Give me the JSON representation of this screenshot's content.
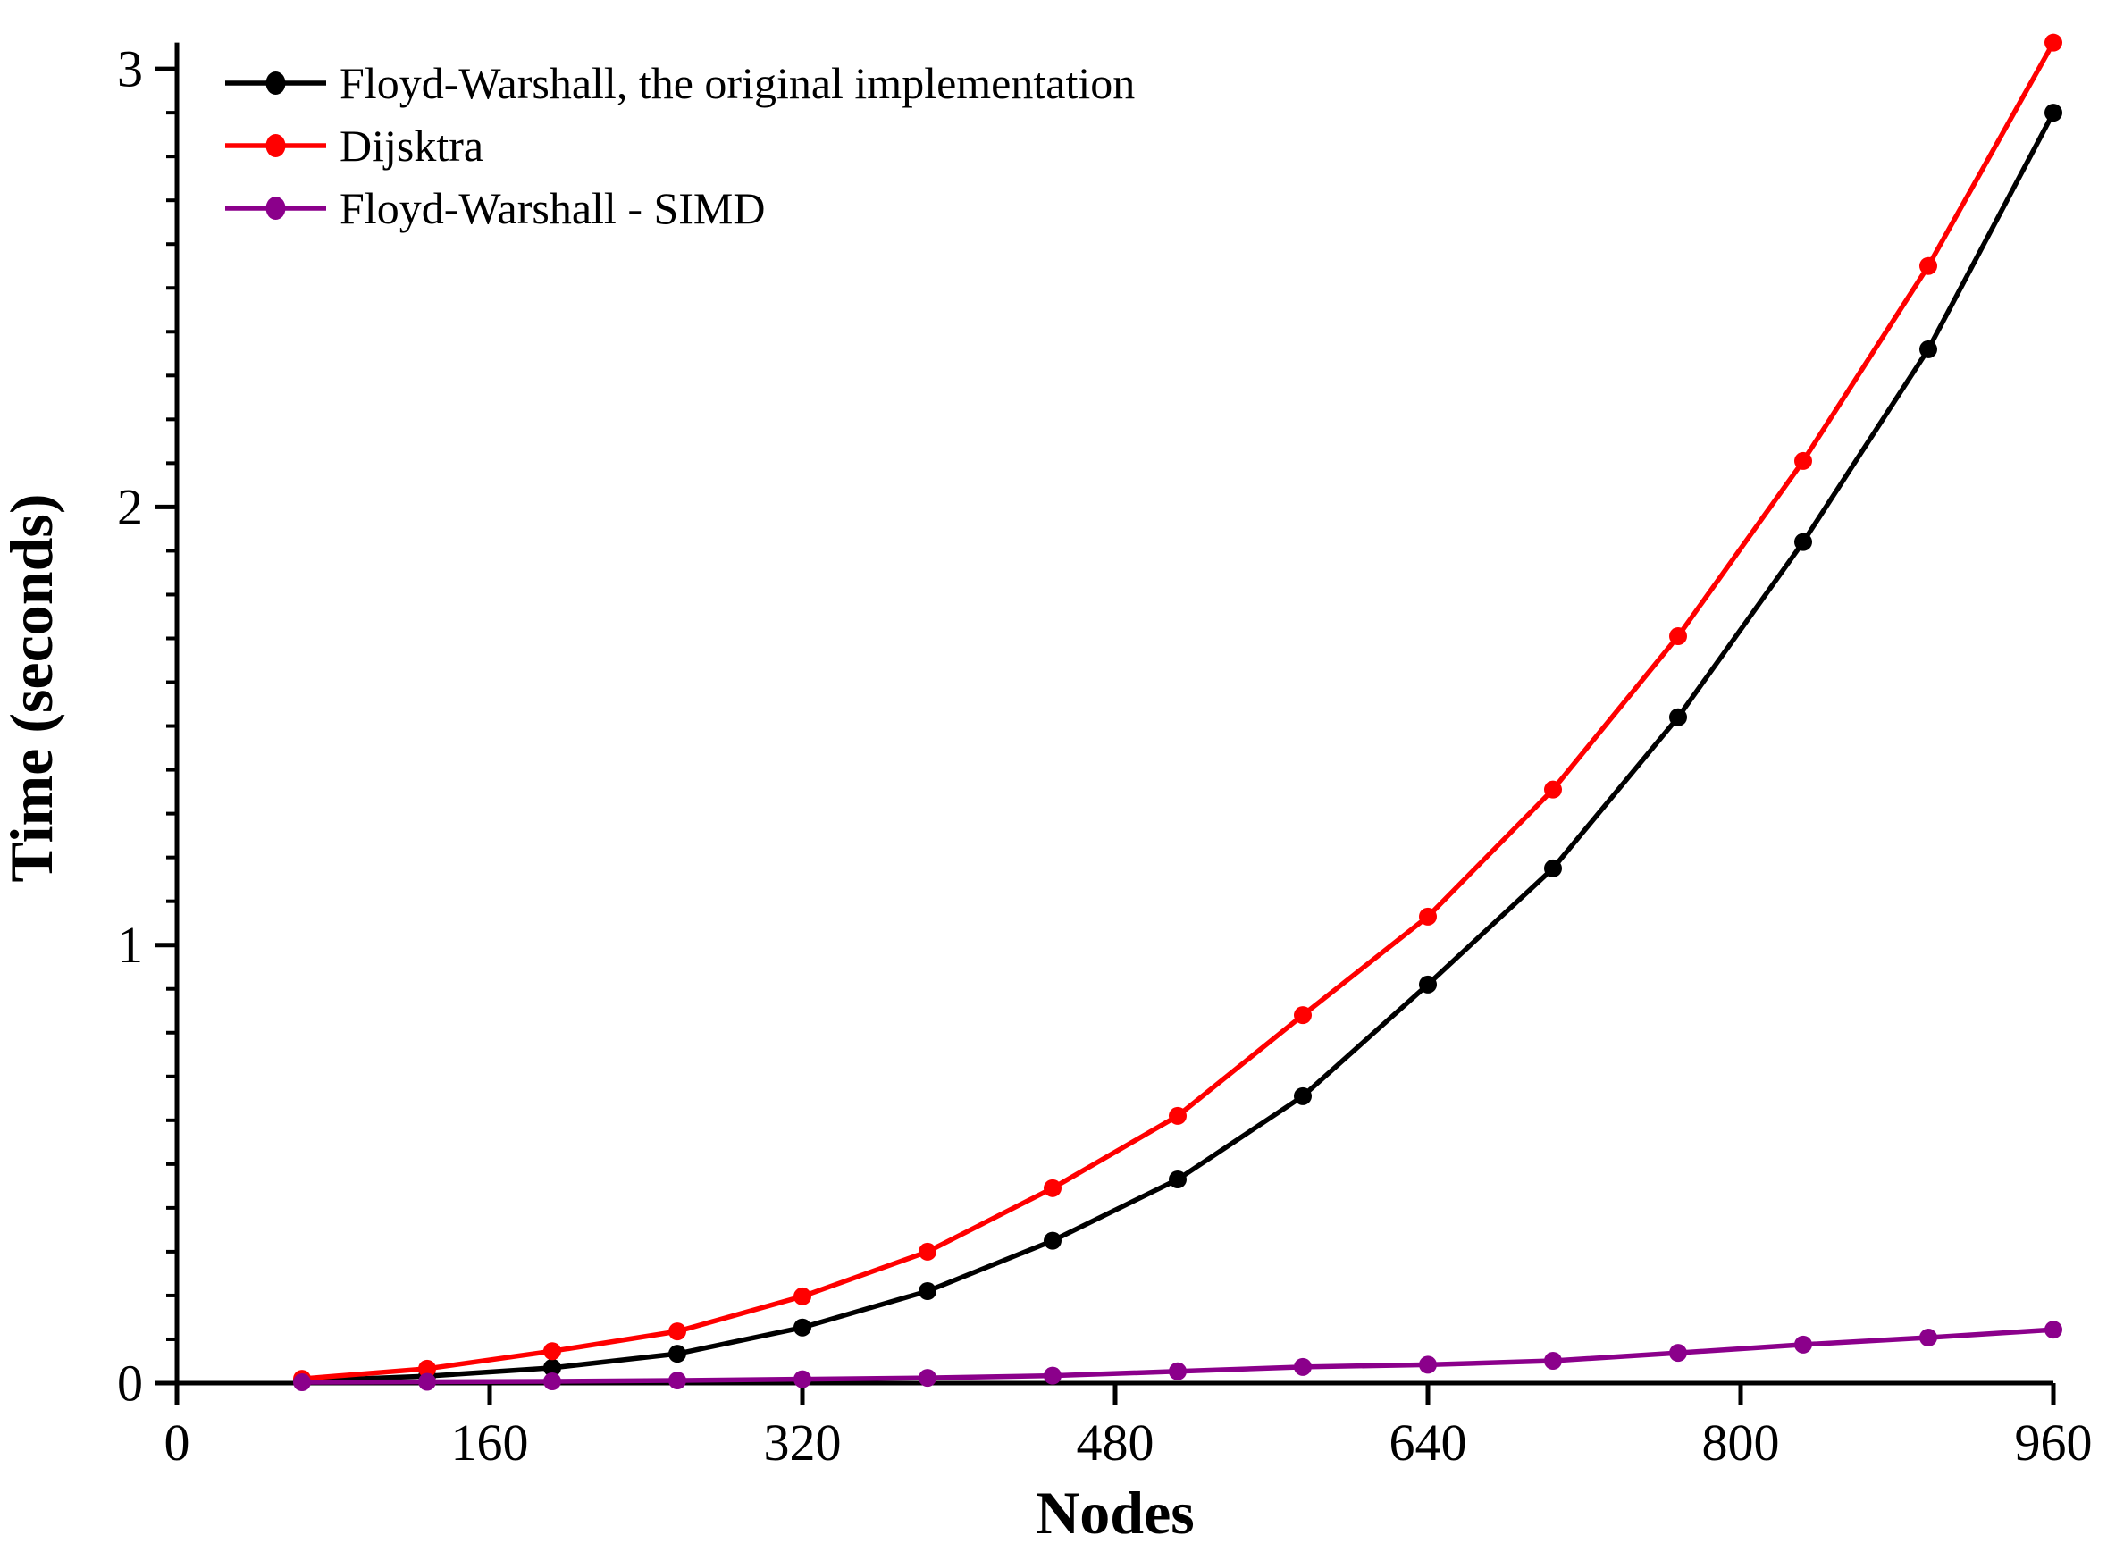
{
  "chart_data": {
    "type": "line",
    "title": "",
    "xlabel": "Nodes",
    "ylabel": "Time (seconds)",
    "xlim": [
      0,
      960
    ],
    "ylim": [
      0,
      3.06
    ],
    "x_ticks": [
      0,
      160,
      320,
      480,
      640,
      800,
      960
    ],
    "y_ticks": [
      0,
      1,
      2,
      3
    ],
    "y_minor_step": 0.1,
    "grid": false,
    "legend_position": "top-left",
    "background_color": "#ffffff",
    "axis_color": "#000000",
    "x": [
      64,
      128,
      192,
      256,
      320,
      384,
      448,
      512,
      576,
      640,
      704,
      768,
      832,
      896,
      960
    ],
    "series": [
      {
        "name": "Floyd-Warshall, the original implementation",
        "color": "#000000",
        "values": [
          0.005,
          0.016,
          0.035,
          0.067,
          0.127,
          0.21,
          0.325,
          0.465,
          0.655,
          0.91,
          1.175,
          1.52,
          1.92,
          2.36,
          2.9
        ]
      },
      {
        "name": "Dijsktra",
        "color": "#ff0000",
        "values": [
          0.01,
          0.033,
          0.073,
          0.118,
          0.198,
          0.3,
          0.445,
          0.61,
          0.84,
          1.065,
          1.355,
          1.705,
          2.105,
          2.55,
          3.06
        ]
      },
      {
        "name": "Floyd-Warshall - SIMD",
        "color": "#8b008b",
        "values": [
          0.002,
          0.003,
          0.004,
          0.006,
          0.009,
          0.012,
          0.017,
          0.027,
          0.037,
          0.042,
          0.051,
          0.069,
          0.088,
          0.104,
          0.122
        ]
      }
    ]
  }
}
